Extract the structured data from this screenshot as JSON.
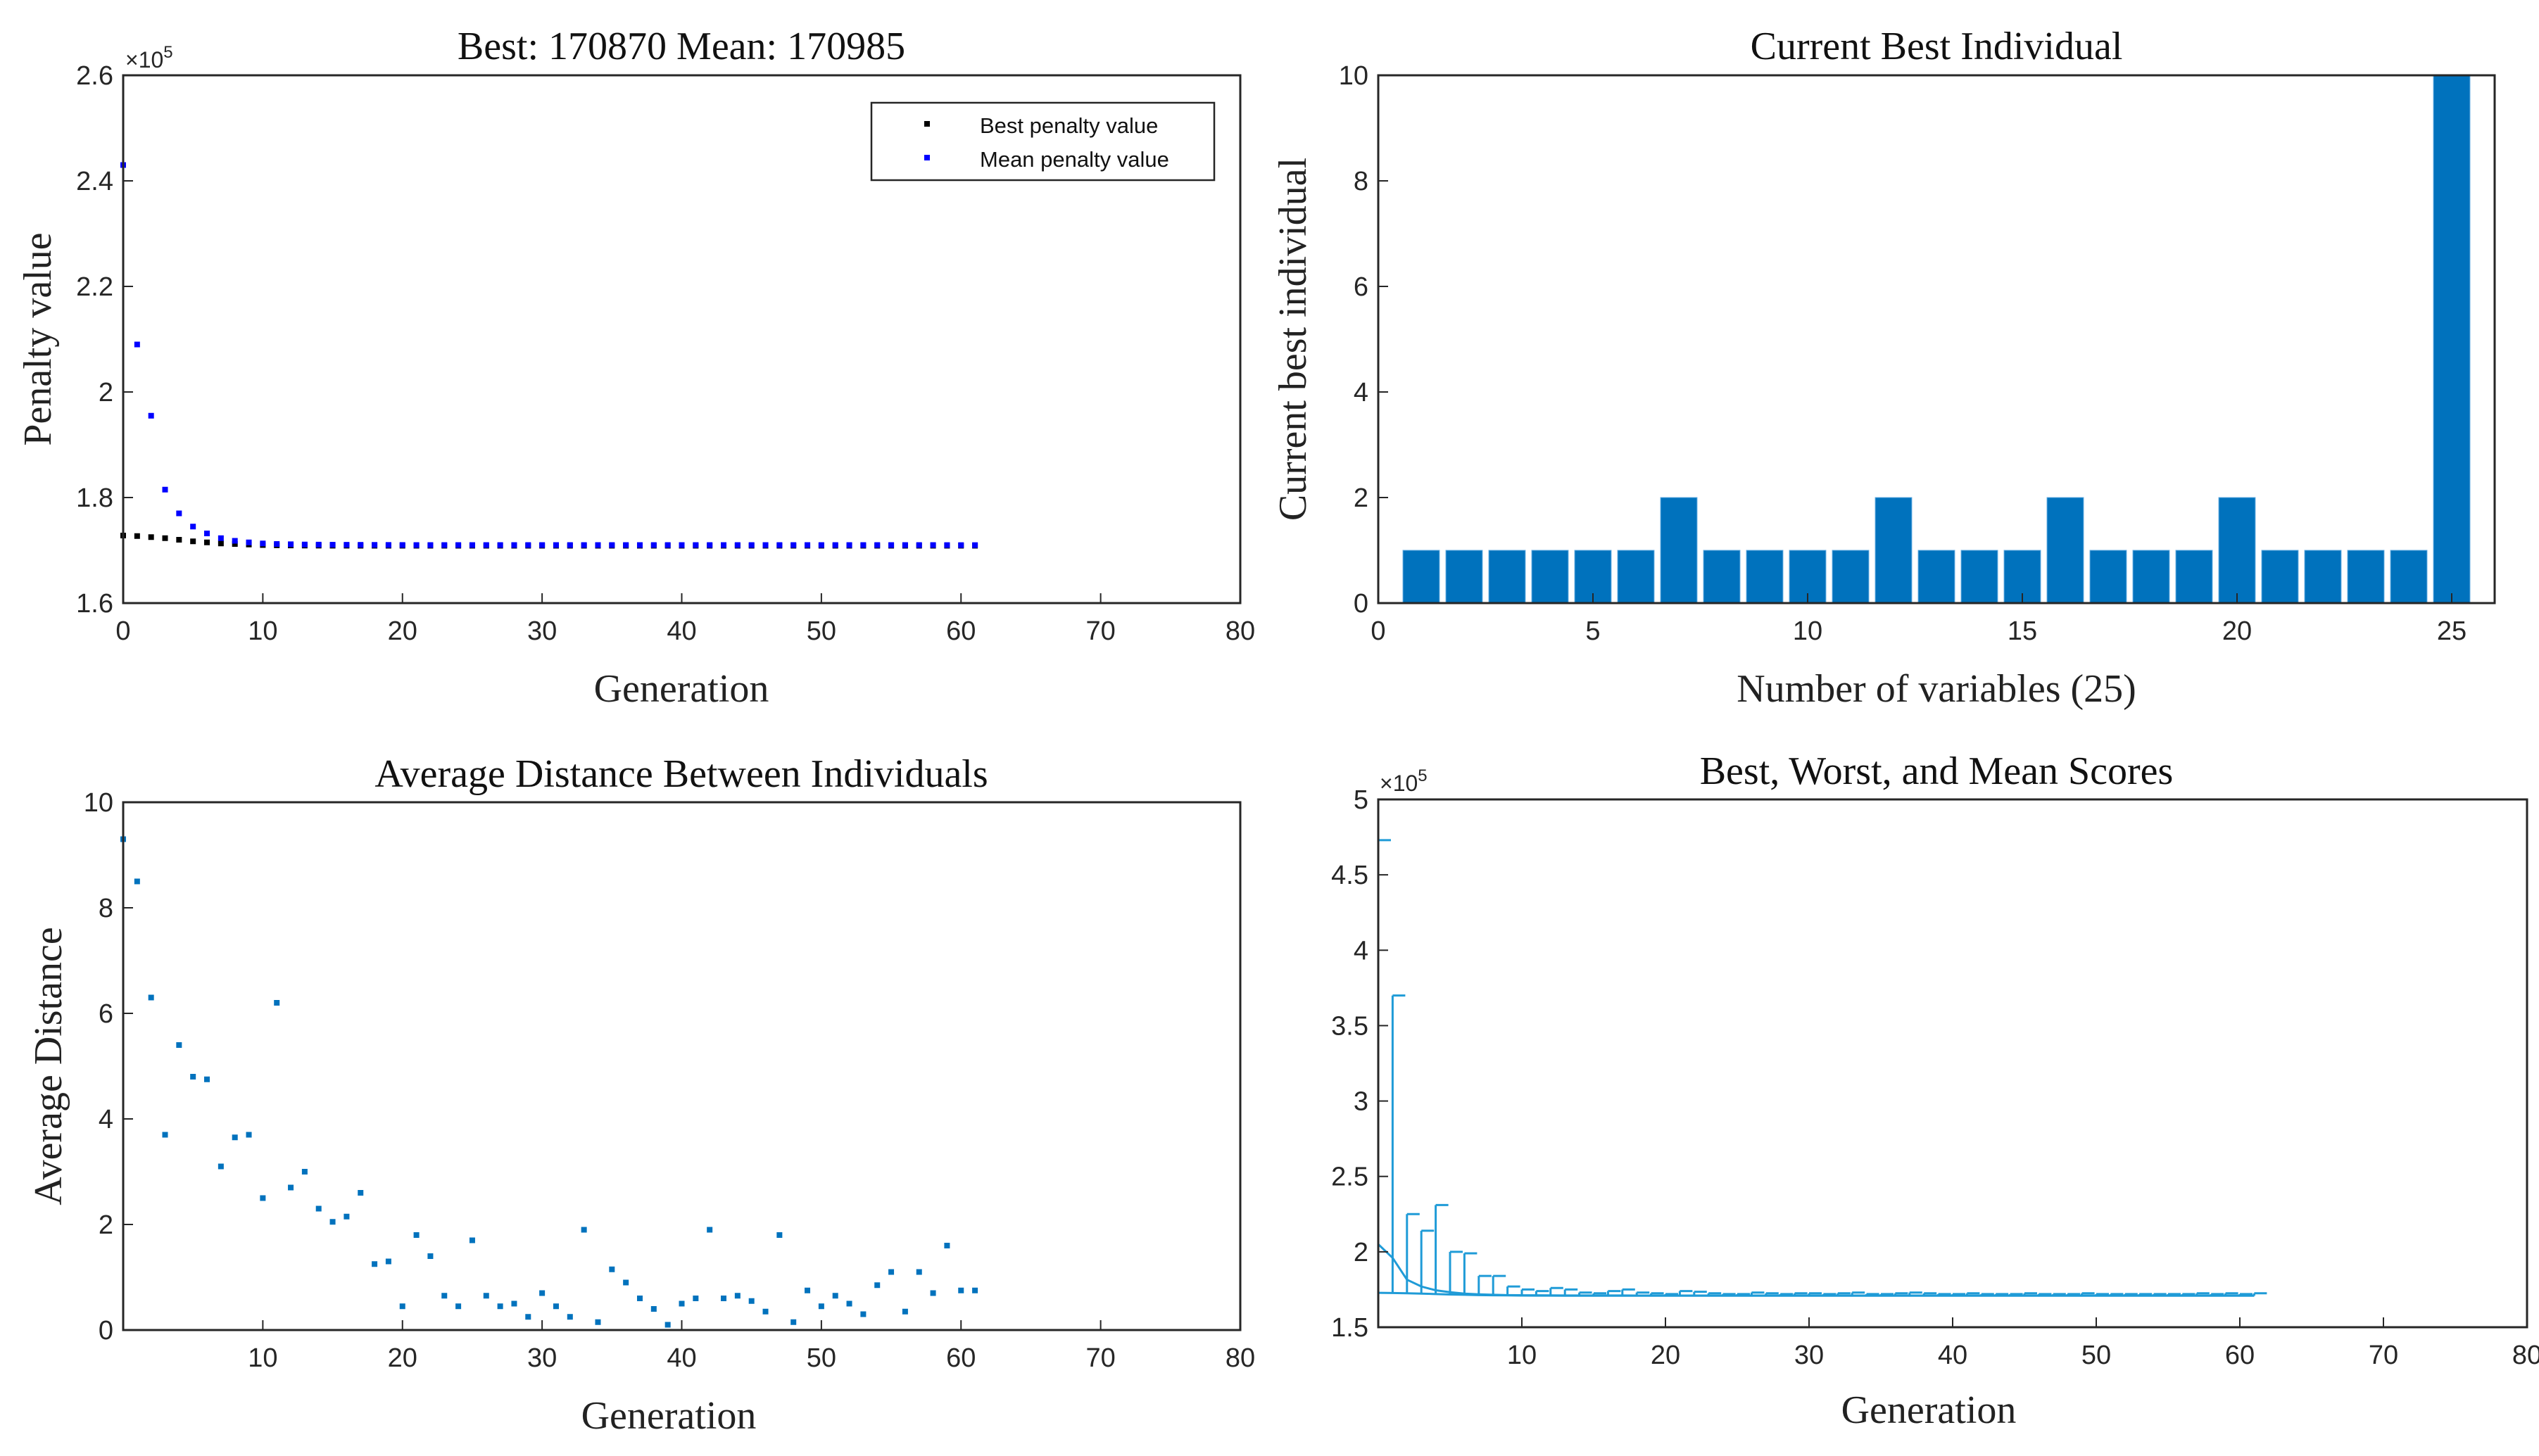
{
  "chart_data": [
    {
      "id": "penalty",
      "type": "scatter",
      "title": "Best: 170870 Mean: 170985",
      "xlabel": "Generation",
      "ylabel": "Penalty value",
      "xlim": [
        0,
        80
      ],
      "ylim": [
        160000,
        260000
      ],
      "xticks": [
        0,
        10,
        20,
        30,
        40,
        50,
        60,
        70,
        80
      ],
      "yticks": [
        160000,
        180000,
        200000,
        220000,
        240000,
        260000
      ],
      "ytick_labels": [
        "1.6",
        "1.8",
        "2",
        "2.2",
        "2.4",
        "2.6"
      ],
      "y_exponent_label": "×10",
      "y_exponent_power": "5",
      "legend": [
        {
          "label": "Best penalty value",
          "color": "#000000"
        },
        {
          "label": "Mean penalty value",
          "color": "#0000ff"
        }
      ],
      "series": [
        {
          "name": "Best penalty value",
          "color": "#000000",
          "x": [
            0,
            1,
            2,
            3,
            4,
            5,
            6,
            7,
            8,
            9,
            10,
            11,
            12,
            13,
            14,
            15,
            16,
            17,
            18,
            19,
            20,
            21,
            22,
            23,
            24,
            25,
            26,
            27,
            28,
            29,
            30,
            31,
            32,
            33,
            34,
            35,
            36,
            37,
            38,
            39,
            40,
            41,
            42,
            43,
            44,
            45,
            46,
            47,
            48,
            49,
            50,
            51,
            52,
            53,
            54,
            55,
            56,
            57,
            58,
            59,
            60,
            61
          ],
          "y": [
            172800,
            172700,
            172500,
            172300,
            172000,
            171700,
            171500,
            171300,
            171200,
            171100,
            171000,
            170950,
            170920,
            170900,
            170890,
            170880,
            170880,
            170870,
            170870,
            170870,
            170870,
            170870,
            170870,
            170870,
            170870,
            170870,
            170870,
            170870,
            170870,
            170870,
            170870,
            170870,
            170870,
            170870,
            170870,
            170870,
            170870,
            170870,
            170870,
            170870,
            170870,
            170870,
            170870,
            170870,
            170870,
            170870,
            170870,
            170870,
            170870,
            170870,
            170870,
            170870,
            170870,
            170870,
            170870,
            170870,
            170870,
            170870,
            170870,
            170870,
            170870,
            170870
          ]
        },
        {
          "name": "Mean penalty value",
          "color": "#0000ff",
          "x": [
            0,
            1,
            2,
            3,
            4,
            5,
            6,
            7,
            8,
            9,
            10,
            11,
            12,
            13,
            14,
            15,
            16,
            17,
            18,
            19,
            20,
            21,
            22,
            23,
            24,
            25,
            26,
            27,
            28,
            29,
            30,
            31,
            32,
            33,
            34,
            35,
            36,
            37,
            38,
            39,
            40,
            41,
            42,
            43,
            44,
            45,
            46,
            47,
            48,
            49,
            50,
            51,
            52,
            53,
            54,
            55,
            56,
            57,
            58,
            59,
            60,
            61
          ],
          "y": [
            243000,
            209000,
            195500,
            181500,
            177000,
            174500,
            173200,
            172300,
            171800,
            171500,
            171300,
            171200,
            171150,
            171100,
            171080,
            171060,
            171050,
            171040,
            171030,
            171020,
            171010,
            171000,
            171000,
            171000,
            171000,
            171000,
            171000,
            171000,
            171000,
            171000,
            171000,
            171000,
            171000,
            171000,
            171000,
            171000,
            171000,
            171000,
            171000,
            171000,
            171000,
            171000,
            171000,
            171000,
            171000,
            171000,
            171000,
            171000,
            171000,
            171000,
            171000,
            171000,
            171000,
            171000,
            171000,
            171000,
            171000,
            171000,
            171000,
            170990,
            170985,
            170985
          ]
        }
      ]
    },
    {
      "id": "bestind",
      "type": "bar",
      "title": "Current Best Individual",
      "xlabel": "Number of variables (25)",
      "ylabel": "Current best individual",
      "xlim": [
        0,
        26
      ],
      "ylim": [
        0,
        10
      ],
      "xticks": [
        0,
        5,
        10,
        15,
        20,
        25
      ],
      "yticks": [
        0,
        2,
        4,
        6,
        8,
        10
      ],
      "color": "#0072bd",
      "categories": [
        1,
        2,
        3,
        4,
        5,
        6,
        7,
        8,
        9,
        10,
        11,
        12,
        13,
        14,
        15,
        16,
        17,
        18,
        19,
        20,
        21,
        22,
        23,
        24,
        25
      ],
      "values": [
        1,
        1,
        1,
        1,
        1,
        1,
        2,
        1,
        1,
        1,
        1,
        2,
        1,
        1,
        1,
        2,
        1,
        1,
        1,
        2,
        1,
        1,
        1,
        1,
        10
      ]
    },
    {
      "id": "distance",
      "type": "scatter",
      "title": "Average Distance Between Individuals",
      "xlabel": "Generation",
      "ylabel": "Average Distance",
      "xlim": [
        0,
        80
      ],
      "ylim": [
        0,
        10
      ],
      "xticks": [
        10,
        20,
        30,
        40,
        50,
        60,
        70,
        80
      ],
      "yticks": [
        0,
        2,
        4,
        6,
        8,
        10
      ],
      "color": "#0072bd",
      "series": [
        {
          "name": "Average distance",
          "color": "#0072bd",
          "x": [
            0,
            1,
            2,
            3,
            4,
            5,
            6,
            7,
            8,
            9,
            10,
            11,
            12,
            13,
            14,
            15,
            16,
            17,
            18,
            19,
            20,
            21,
            22,
            23,
            24,
            25,
            26,
            27,
            28,
            29,
            30,
            31,
            32,
            33,
            34,
            35,
            36,
            37,
            38,
            39,
            40,
            41,
            42,
            43,
            44,
            45,
            46,
            47,
            48,
            49,
            50,
            51,
            52,
            53,
            54,
            55,
            56,
            57,
            58,
            59,
            60,
            61
          ],
          "y": [
            9.3,
            8.5,
            6.3,
            3.7,
            5.4,
            4.8,
            4.75,
            3.1,
            3.65,
            3.7,
            2.5,
            6.2,
            2.7,
            3.0,
            2.3,
            2.05,
            2.15,
            2.6,
            1.25,
            1.3,
            0.45,
            1.8,
            1.4,
            0.65,
            0.45,
            1.7,
            0.65,
            0.45,
            0.5,
            0.25,
            0.7,
            0.45,
            0.25,
            1.9,
            0.15,
            1.15,
            0.9,
            0.6,
            0.4,
            0.1,
            0.5,
            0.6,
            1.9,
            0.6,
            0.65,
            0.55,
            0.35,
            1.8,
            0.15,
            0.75,
            0.45,
            0.65,
            0.5,
            0.3,
            0.85,
            1.1,
            0.35,
            1.1,
            0.7,
            1.6,
            0.75,
            0.75
          ]
        }
      ]
    },
    {
      "id": "scores",
      "type": "line",
      "title": "Best, Worst, and Mean Scores",
      "xlabel": "Generation",
      "ylabel": "",
      "xlim": [
        0,
        80
      ],
      "ylim": [
        150000,
        500000
      ],
      "xticks": [
        10,
        20,
        30,
        40,
        50,
        60,
        70,
        80
      ],
      "yticks": [
        150000,
        200000,
        250000,
        300000,
        350000,
        400000,
        450000,
        500000
      ],
      "ytick_labels": [
        "1.5",
        "2",
        "2.5",
        "3",
        "3.5",
        "4",
        "4.5",
        "5"
      ],
      "y_exponent_label": "×10",
      "y_exponent_power": "5",
      "color": "#0072bd",
      "series": [
        {
          "name": "Best",
          "x": [
            0,
            1,
            2,
            3,
            4,
            5,
            6,
            7,
            8,
            9,
            10,
            11,
            12,
            13,
            14,
            15,
            16,
            17,
            18,
            19,
            20,
            21,
            22,
            23,
            24,
            25,
            26,
            27,
            28,
            29,
            30,
            31,
            32,
            33,
            34,
            35,
            36,
            37,
            38,
            39,
            40,
            41,
            42,
            43,
            44,
            45,
            46,
            47,
            48,
            49,
            50,
            51,
            52,
            53,
            54,
            55,
            56,
            57,
            58,
            59,
            60,
            61
          ],
          "values": [
            172800,
            172700,
            172500,
            172300,
            172000,
            171700,
            171500,
            171300,
            171200,
            171100,
            171000,
            170950,
            170920,
            170900,
            170890,
            170880,
            170880,
            170870,
            170870,
            170870,
            170870,
            170870,
            170870,
            170870,
            170870,
            170870,
            170870,
            170870,
            170870,
            170870,
            170870,
            170870,
            170870,
            170870,
            170870,
            170870,
            170870,
            170870,
            170870,
            170870,
            170870,
            170870,
            170870,
            170870,
            170870,
            170870,
            170870,
            170870,
            170870,
            170870,
            170870,
            170870,
            170870,
            170870,
            170870,
            170870,
            170870,
            170870,
            170870,
            170870,
            170870,
            170870
          ]
        },
        {
          "name": "Worst",
          "x": [
            0,
            1,
            2,
            3,
            4,
            5,
            6,
            7,
            8,
            9,
            10,
            11,
            12,
            13,
            14,
            15,
            16,
            17,
            18,
            19,
            20,
            21,
            22,
            23,
            24,
            25,
            26,
            27,
            28,
            29,
            30,
            31,
            32,
            33,
            34,
            35,
            36,
            37,
            38,
            39,
            40,
            41,
            42,
            43,
            44,
            45,
            46,
            47,
            48,
            49,
            50,
            51,
            52,
            53,
            54,
            55,
            56,
            57,
            58,
            59,
            60,
            61
          ],
          "values": [
            473000,
            370000,
            225000,
            214000,
            231000,
            200000,
            199000,
            184000,
            184000,
            177000,
            175000,
            174000,
            176000,
            175000,
            173000,
            172500,
            174000,
            175000,
            173000,
            172500,
            172000,
            174000,
            173500,
            172500,
            172000,
            172000,
            173000,
            172500,
            172000,
            172500,
            172500,
            172000,
            172500,
            173000,
            172000,
            172000,
            172500,
            173000,
            172500,
            172000,
            172000,
            172500,
            172000,
            172000,
            172000,
            172500,
            172000,
            172000,
            172000,
            172500,
            172000,
            172000,
            172000,
            172000,
            172000,
            172000,
            172000,
            172500,
            172000,
            172500,
            172000,
            172500
          ]
        },
        {
          "name": "Mean",
          "x": [
            0,
            1,
            2,
            3,
            4,
            5,
            6,
            7,
            8,
            9,
            10,
            11,
            12,
            13,
            14,
            15,
            16,
            17,
            18,
            19,
            20,
            21,
            22,
            23,
            24,
            25,
            26,
            27,
            28,
            29,
            30,
            31,
            32,
            33,
            34,
            35,
            36,
            37,
            38,
            39,
            40,
            41,
            42,
            43,
            44,
            45,
            46,
            47,
            48,
            49,
            50,
            51,
            52,
            53,
            54,
            55,
            56,
            57,
            58,
            59,
            60,
            61
          ],
          "values": [
            205000,
            196000,
            181500,
            177000,
            174500,
            173200,
            172300,
            171800,
            171500,
            171300,
            171200,
            171150,
            171100,
            171080,
            171060,
            171050,
            171040,
            171030,
            171020,
            171010,
            171000,
            171000,
            171000,
            171000,
            171000,
            171000,
            171000,
            171000,
            171000,
            171000,
            171000,
            171000,
            171000,
            171000,
            171000,
            171000,
            171000,
            171000,
            171000,
            171000,
            171000,
            171000,
            171000,
            171000,
            171000,
            171000,
            171000,
            171000,
            171000,
            171000,
            171000,
            171000,
            171000,
            171000,
            171000,
            171000,
            171000,
            171000,
            171000,
            170990,
            170985,
            170985
          ]
        }
      ]
    }
  ]
}
